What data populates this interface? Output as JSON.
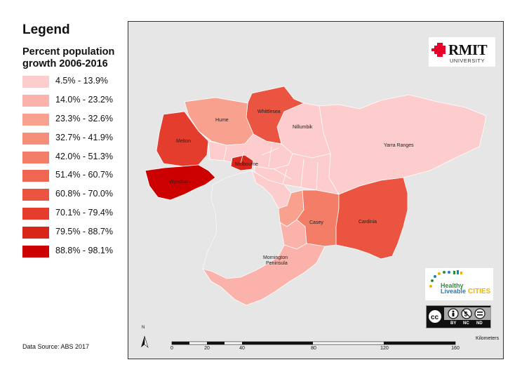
{
  "legend": {
    "title": "Legend",
    "subtitle": "Percent population growth 2006-2016",
    "classes": [
      {
        "label": "4.5% - 13.9%",
        "color": "#fdcccc"
      },
      {
        "label": "14.0% - 23.2%",
        "color": "#fbb2aa"
      },
      {
        "label": "23.3% - 32.6%",
        "color": "#f9a18f"
      },
      {
        "label": "32.7% - 41.9%",
        "color": "#f68f7a"
      },
      {
        "label": "42.0% - 51.3%",
        "color": "#f37d67"
      },
      {
        "label": "51.4% - 60.7%",
        "color": "#ef6753"
      },
      {
        "label": "60.8% - 70.0%",
        "color": "#ea5440"
      },
      {
        "label": "70.1% - 79.4%",
        "color": "#e43d2d"
      },
      {
        "label": "79.5% - 88.7%",
        "color": "#d9261b"
      },
      {
        "label": "88.8% - 98.1%",
        "color": "#cc0000"
      }
    ]
  },
  "source": "Data Source: ABS 2017",
  "map": {
    "regions": [
      {
        "name": "Hume",
        "label": "Hume",
        "color": "#f9a18f"
      },
      {
        "name": "Whittlesea",
        "label": "Whittlesea",
        "color": "#ea5440"
      },
      {
        "name": "Nillumbik",
        "label": "Nillumbik",
        "color": "#fdcccc"
      },
      {
        "name": "Yarra Ranges",
        "label": "Yarra Ranges",
        "color": "#fdcccc"
      },
      {
        "name": "Melton",
        "label": "Melton",
        "color": "#e43d2d"
      },
      {
        "name": "Melbourne",
        "label": "Melbourne",
        "color": "#d9261b"
      },
      {
        "name": "Wyndham",
        "label": "Wyndham",
        "color": "#cc0000"
      },
      {
        "name": "Casey",
        "label": "Casey",
        "color": "#f37d67"
      },
      {
        "name": "Cardinia",
        "label": "Cardinia",
        "color": "#ea5440"
      },
      {
        "name": "Mornington Peninsula",
        "label": "Mornington Peninsula",
        "color": "#fbb2aa"
      }
    ],
    "north_label": "N",
    "scale": {
      "unit_label": "Kilometers",
      "ticks": [
        "0",
        "20",
        "40",
        "80",
        "120",
        "160"
      ]
    }
  },
  "logos": {
    "rmit": {
      "name": "RMIT",
      "sub": "UNIVERSITY",
      "color": "#e60028"
    },
    "hlc": {
      "line1": "Healthy",
      "line2": "Liveable",
      "line3": "CITIES"
    },
    "cc": {
      "labels": [
        "BY",
        "NC",
        "ND"
      ]
    }
  }
}
